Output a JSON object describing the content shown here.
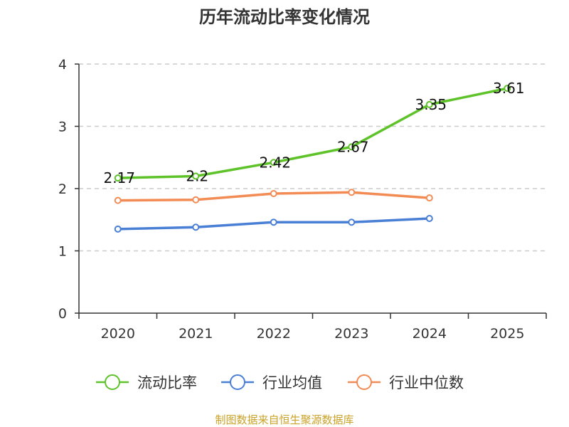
{
  "chart_data": {
    "type": "line",
    "title": "历年流动比率变化情况",
    "categories": [
      "2020",
      "2021",
      "2022",
      "2023",
      "2024",
      "2025"
    ],
    "ylim": [
      0,
      4
    ],
    "yticks": [
      0,
      1,
      2,
      3,
      4
    ],
    "grid": true,
    "legend_position": "bottom",
    "series": [
      {
        "name": "流动比率",
        "color": "#5ec229",
        "values": [
          2.17,
          2.2,
          2.42,
          2.67,
          3.35,
          3.61
        ],
        "labels": [
          "2.17",
          "2.2",
          "2.42",
          "2.67",
          "3.35",
          "3.61"
        ]
      },
      {
        "name": "行业均值",
        "color": "#4a7fd6",
        "values": [
          1.35,
          1.38,
          1.46,
          1.46,
          1.52,
          null
        ]
      },
      {
        "name": "行业中位数",
        "color": "#f28b54",
        "values": [
          1.81,
          1.82,
          1.92,
          1.94,
          1.85,
          null
        ]
      }
    ],
    "source": "制图数据来自恒生聚源数据库"
  }
}
